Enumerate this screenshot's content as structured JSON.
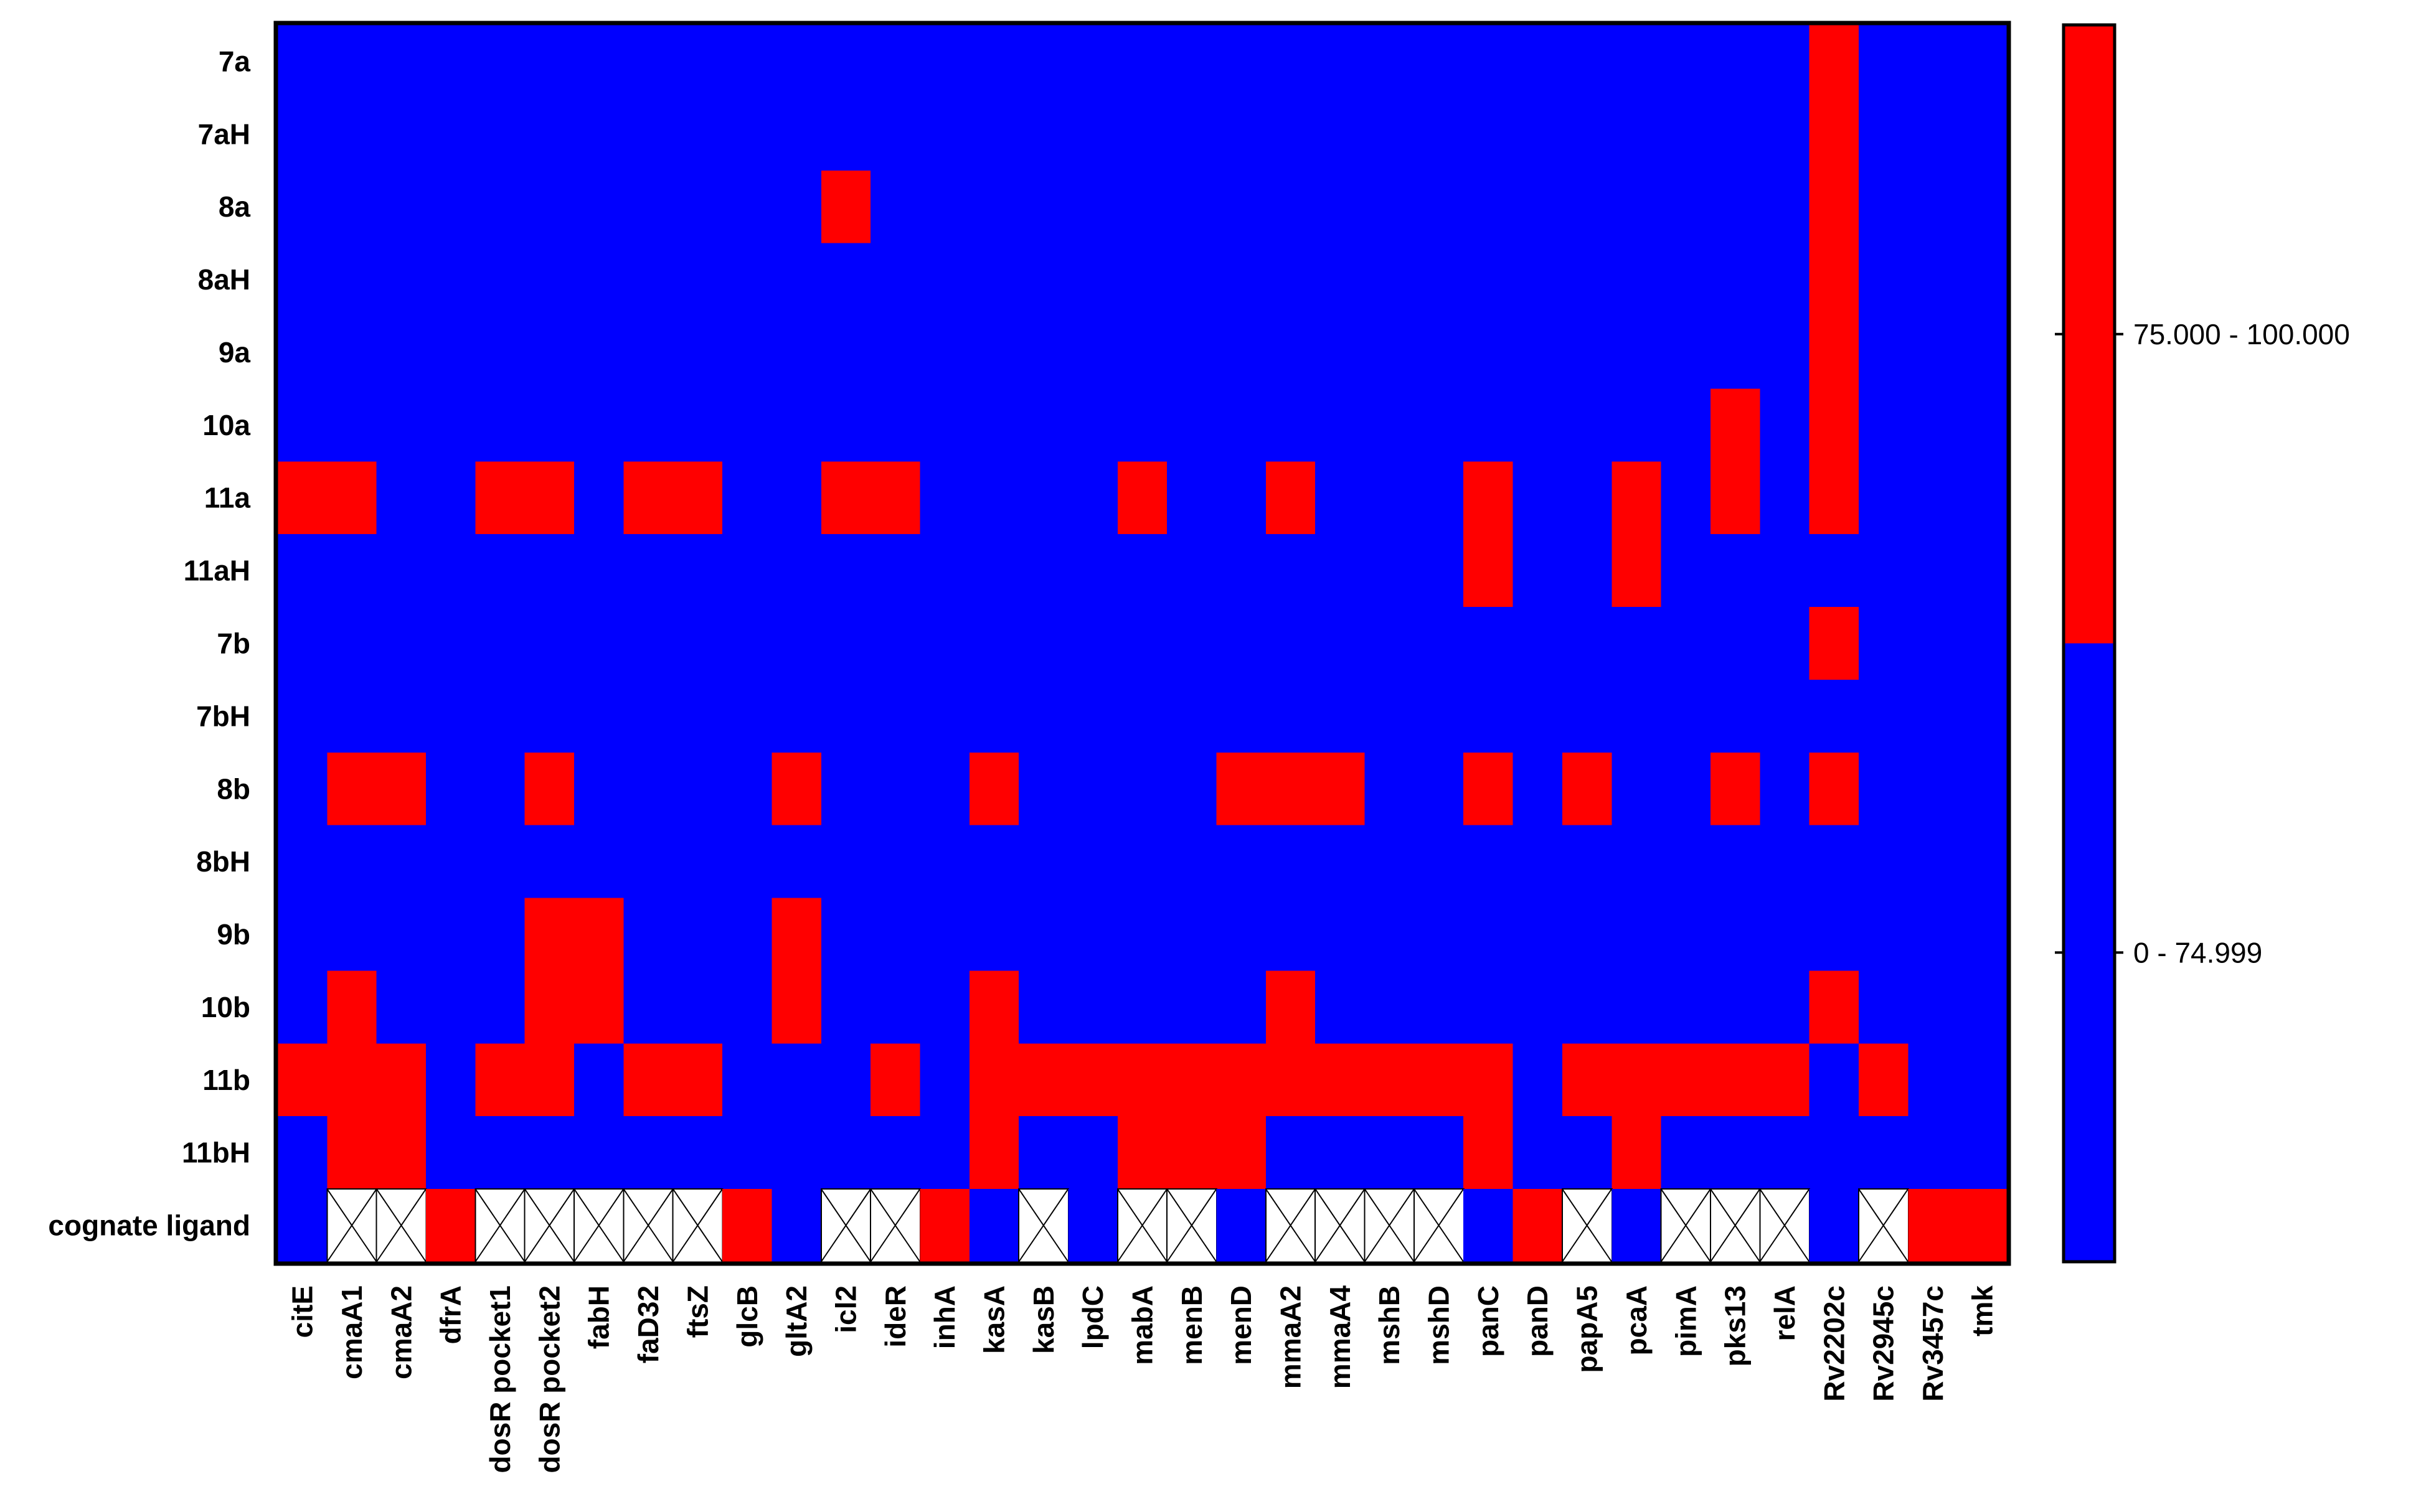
{
  "chart_data": {
    "type": "heatmap",
    "title": "",
    "xlabel": "",
    "ylabel": "",
    "rows": [
      "7a",
      "7aH",
      "8a",
      "8aH",
      "9a",
      "10a",
      "11a",
      "11aH",
      "7b",
      "7bH",
      "8b",
      "8bH",
      "9b",
      "10b",
      "11b",
      "11bH",
      "cognate ligand"
    ],
    "columns": [
      "citE",
      "cmaA1",
      "cmaA2",
      "dfrA",
      "dosR pocket1",
      "dosR pocket2",
      "fabH",
      "faD32",
      "ftsZ",
      "glcB",
      "gltA2",
      "icl2",
      "ideR",
      "inhA",
      "kasA",
      "kasB",
      "lpdC",
      "mabA",
      "menB",
      "menD",
      "mmaA2",
      "mmaA4",
      "mshB",
      "mshD",
      "panC",
      "panD",
      "papA5",
      "pcaA",
      "pimA",
      "pks13",
      "relA",
      "Rv2202c",
      "Rv2945c",
      "Rv3457c",
      "tmk"
    ],
    "value_encoding": "1 = 75.000 - 100.000 (red), 0 = 0 - 74.999 (blue), null = not applicable (crossed white cell)",
    "values": [
      [
        0,
        0,
        0,
        0,
        0,
        0,
        0,
        0,
        0,
        0,
        0,
        0,
        0,
        0,
        0,
        0,
        0,
        0,
        0,
        0,
        0,
        0,
        0,
        0,
        0,
        0,
        0,
        0,
        0,
        0,
        0,
        1,
        0,
        0,
        0
      ],
      [
        0,
        0,
        0,
        0,
        0,
        0,
        0,
        0,
        0,
        0,
        0,
        0,
        0,
        0,
        0,
        0,
        0,
        0,
        0,
        0,
        0,
        0,
        0,
        0,
        0,
        0,
        0,
        0,
        0,
        0,
        0,
        1,
        0,
        0,
        0
      ],
      [
        0,
        0,
        0,
        0,
        0,
        0,
        0,
        0,
        0,
        0,
        0,
        1,
        0,
        0,
        0,
        0,
        0,
        0,
        0,
        0,
        0,
        0,
        0,
        0,
        0,
        0,
        0,
        0,
        0,
        0,
        0,
        1,
        0,
        0,
        0
      ],
      [
        0,
        0,
        0,
        0,
        0,
        0,
        0,
        0,
        0,
        0,
        0,
        0,
        0,
        0,
        0,
        0,
        0,
        0,
        0,
        0,
        0,
        0,
        0,
        0,
        0,
        0,
        0,
        0,
        0,
        0,
        0,
        1,
        0,
        0,
        0
      ],
      [
        0,
        0,
        0,
        0,
        0,
        0,
        0,
        0,
        0,
        0,
        0,
        0,
        0,
        0,
        0,
        0,
        0,
        0,
        0,
        0,
        0,
        0,
        0,
        0,
        0,
        0,
        0,
        0,
        0,
        0,
        0,
        1,
        0,
        0,
        0
      ],
      [
        0,
        0,
        0,
        0,
        0,
        0,
        0,
        0,
        0,
        0,
        0,
        0,
        0,
        0,
        0,
        0,
        0,
        0,
        0,
        0,
        0,
        0,
        0,
        0,
        0,
        0,
        0,
        0,
        0,
        1,
        0,
        1,
        0,
        0,
        0
      ],
      [
        1,
        1,
        0,
        0,
        1,
        1,
        0,
        1,
        1,
        0,
        0,
        1,
        1,
        0,
        0,
        0,
        0,
        1,
        0,
        0,
        1,
        0,
        0,
        0,
        1,
        0,
        0,
        1,
        0,
        1,
        0,
        1,
        0,
        0,
        0
      ],
      [
        0,
        0,
        0,
        0,
        0,
        0,
        0,
        0,
        0,
        0,
        0,
        0,
        0,
        0,
        0,
        0,
        0,
        0,
        0,
        0,
        0,
        0,
        0,
        0,
        1,
        0,
        0,
        1,
        0,
        0,
        0,
        0,
        0,
        0,
        0
      ],
      [
        0,
        0,
        0,
        0,
        0,
        0,
        0,
        0,
        0,
        0,
        0,
        0,
        0,
        0,
        0,
        0,
        0,
        0,
        0,
        0,
        0,
        0,
        0,
        0,
        0,
        0,
        0,
        0,
        0,
        0,
        0,
        1,
        0,
        0,
        0
      ],
      [
        0,
        0,
        0,
        0,
        0,
        0,
        0,
        0,
        0,
        0,
        0,
        0,
        0,
        0,
        0,
        0,
        0,
        0,
        0,
        0,
        0,
        0,
        0,
        0,
        0,
        0,
        0,
        0,
        0,
        0,
        0,
        0,
        0,
        0,
        0
      ],
      [
        0,
        1,
        1,
        0,
        0,
        1,
        0,
        0,
        0,
        0,
        1,
        0,
        0,
        0,
        1,
        0,
        0,
        0,
        0,
        1,
        1,
        1,
        0,
        0,
        1,
        0,
        1,
        0,
        0,
        1,
        0,
        1,
        0,
        0,
        0
      ],
      [
        0,
        0,
        0,
        0,
        0,
        0,
        0,
        0,
        0,
        0,
        0,
        0,
        0,
        0,
        0,
        0,
        0,
        0,
        0,
        0,
        0,
        0,
        0,
        0,
        0,
        0,
        0,
        0,
        0,
        0,
        0,
        0,
        0,
        0,
        0
      ],
      [
        0,
        0,
        0,
        0,
        0,
        1,
        1,
        0,
        0,
        0,
        1,
        0,
        0,
        0,
        0,
        0,
        0,
        0,
        0,
        0,
        0,
        0,
        0,
        0,
        0,
        0,
        0,
        0,
        0,
        0,
        0,
        0,
        0,
        0,
        0
      ],
      [
        0,
        1,
        0,
        0,
        0,
        1,
        1,
        0,
        0,
        0,
        1,
        0,
        0,
        0,
        1,
        0,
        0,
        0,
        0,
        0,
        1,
        0,
        0,
        0,
        0,
        0,
        0,
        0,
        0,
        0,
        0,
        1,
        0,
        0,
        0
      ],
      [
        1,
        1,
        1,
        0,
        1,
        1,
        0,
        1,
        1,
        0,
        0,
        0,
        1,
        0,
        1,
        1,
        1,
        1,
        1,
        1,
        1,
        1,
        1,
        1,
        1,
        0,
        1,
        1,
        1,
        1,
        1,
        0,
        1,
        0,
        0
      ],
      [
        0,
        1,
        1,
        0,
        0,
        0,
        0,
        0,
        0,
        0,
        0,
        0,
        0,
        0,
        1,
        0,
        0,
        1,
        1,
        1,
        0,
        0,
        0,
        0,
        1,
        0,
        0,
        1,
        0,
        0,
        0,
        0,
        0,
        0,
        0
      ],
      [
        0,
        null,
        null,
        1,
        null,
        null,
        null,
        null,
        null,
        1,
        0,
        null,
        null,
        1,
        0,
        null,
        0,
        null,
        null,
        0,
        null,
        null,
        null,
        null,
        0,
        1,
        null,
        0,
        null,
        null,
        null,
        0,
        null,
        1,
        1
      ]
    ],
    "colors": {
      "high": "#ff0000",
      "low": "#0000ff",
      "na": "#ffffff",
      "border": "#000000"
    },
    "legend": {
      "position": "right",
      "entries": [
        {
          "label": "75.000 - 100.000",
          "color": "#ff0000"
        },
        {
          "label": "0 - 74.999",
          "color": "#0000ff"
        }
      ]
    }
  }
}
